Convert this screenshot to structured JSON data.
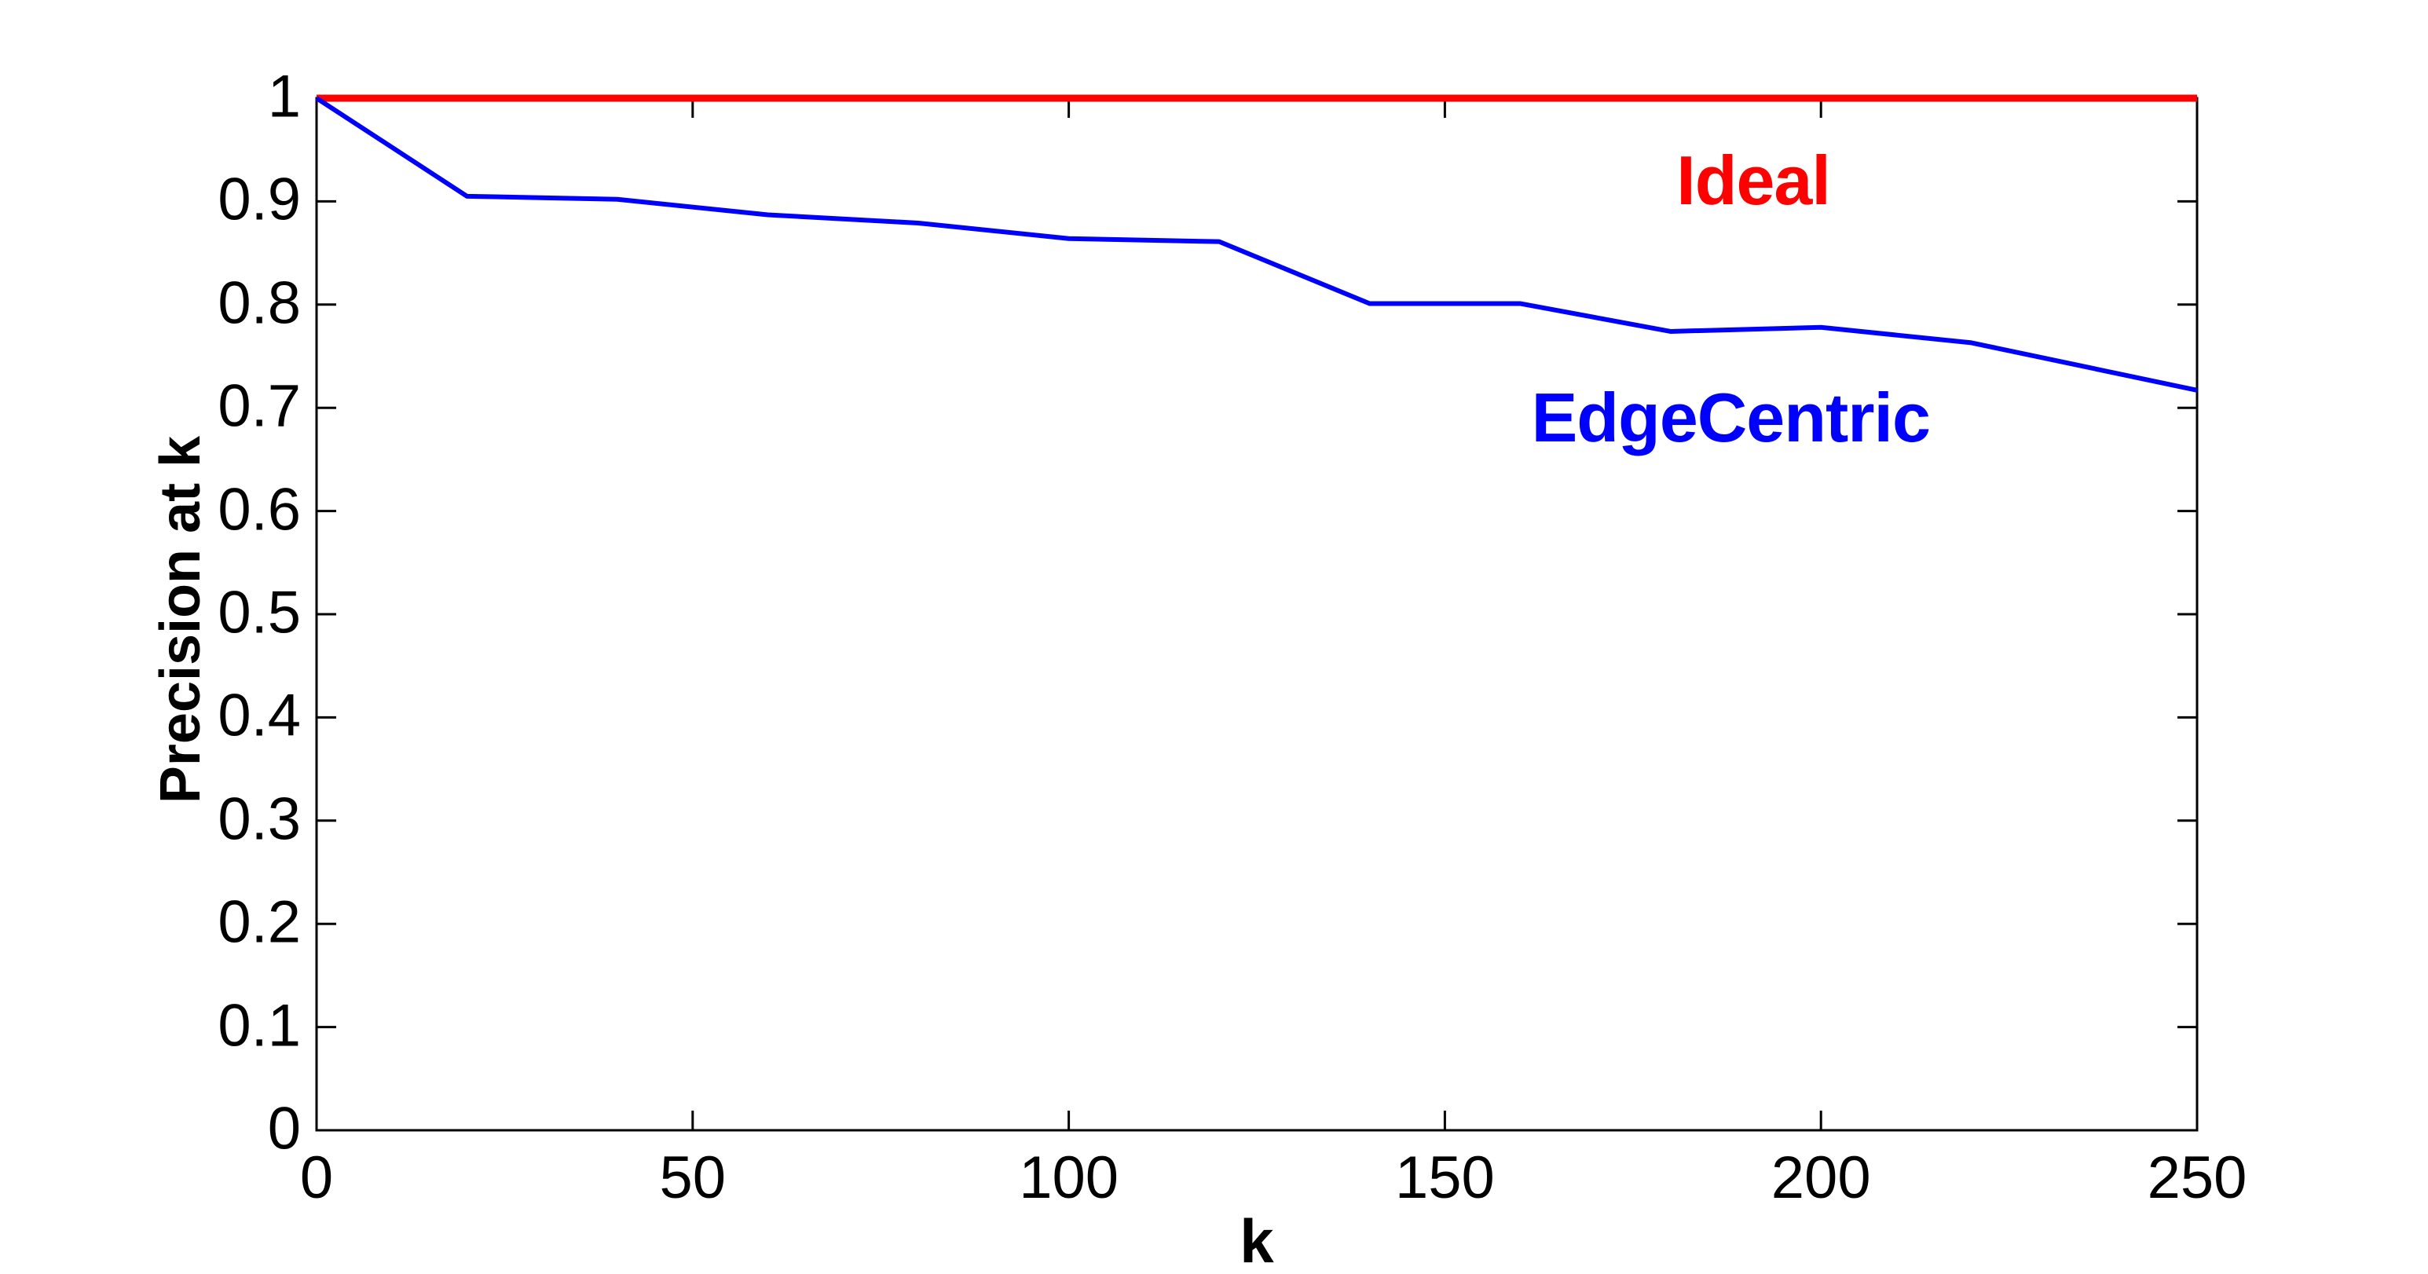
{
  "figure": {
    "background": "#ffffff",
    "axis_color": "#000000"
  },
  "chart_data": {
    "type": "line",
    "title": "",
    "xlabel": "k",
    "ylabel": "Precision at k",
    "xlim": [
      0,
      250
    ],
    "ylim": [
      0,
      1
    ],
    "grid": false,
    "legend_position": "inline-text-annotations",
    "x_ticks": {
      "values": [
        0,
        50,
        100,
        150,
        200,
        250
      ],
      "labels": [
        "0",
        "50",
        "100",
        "150",
        "200",
        "250"
      ]
    },
    "y_ticks": {
      "values": [
        0,
        0.1,
        0.2,
        0.3,
        0.4,
        0.5,
        0.6,
        0.7,
        0.8,
        0.9,
        1
      ],
      "labels": [
        "0",
        "0.1",
        "0.2",
        "0.3",
        "0.4",
        "0.5",
        "0.6",
        "0.7",
        "0.8",
        "0.9",
        "1"
      ]
    },
    "series": [
      {
        "name": "Ideal",
        "color": "#ff0000",
        "line_width": 9,
        "x": [
          0,
          250
        ],
        "y": [
          1.0,
          1.0
        ]
      },
      {
        "name": "EdgeCentric",
        "color": "#0000ff",
        "line_width": 6,
        "x": [
          0,
          20,
          40,
          60,
          80,
          100,
          120,
          140,
          160,
          180,
          200,
          220,
          250
        ],
        "y": [
          1.0,
          0.905,
          0.902,
          0.887,
          0.879,
          0.864,
          0.861,
          0.801,
          0.801,
          0.774,
          0.778,
          0.763,
          0.717
        ]
      }
    ],
    "annotations": [
      {
        "text": "Ideal",
        "color": "#ff0000",
        "x": 191,
        "y": 0.92
      },
      {
        "text": "EdgeCentric",
        "color": "#0000ff",
        "x": 188,
        "y": 0.69
      }
    ]
  }
}
